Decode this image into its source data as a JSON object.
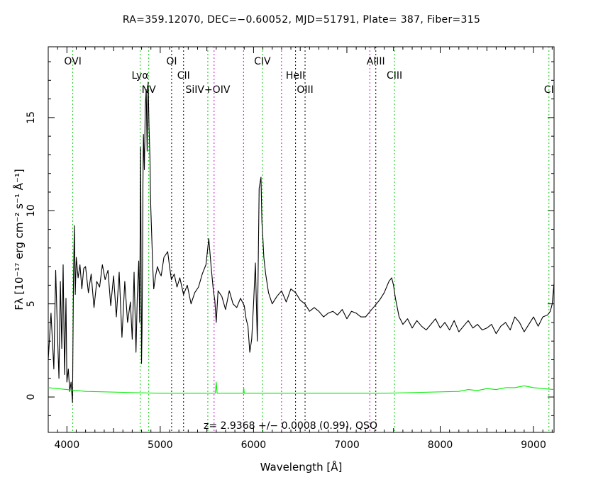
{
  "chart_data": {
    "type": "line",
    "title": "RA=359.12070, DEC=−0.60052, MJD=51791, Plate=  387, Fiber=315",
    "xlabel": "Wavelength [Å]",
    "ylabel": "Fλ [10⁻¹⁷ erg cm⁻² s⁻¹ Å⁻¹]",
    "xlim": [
      3800,
      9220
    ],
    "ylim": [
      -1.9,
      18.8
    ],
    "x_ticks": [
      4000,
      5000,
      6000,
      7000,
      8000,
      9000
    ],
    "y_ticks": [
      0,
      5,
      10,
      15
    ],
    "annotation": "z= 2.9368 +/− 0.0008 (0.99), QSO",
    "colors": {
      "spectrum": "#000000",
      "error": "#00ee00",
      "emission_line": "#00cc00",
      "absorption_line": "#000000",
      "sky_line": "#cc00cc"
    },
    "series": [
      {
        "x": [
          3800,
          3830,
          3860,
          3880,
          3900,
          3915,
          3930,
          3945,
          3960,
          3975,
          3990,
          4000,
          4015,
          4030,
          4045,
          4060,
          4070,
          4080,
          4090,
          4100,
          4120,
          4140,
          4160,
          4180,
          4200,
          4230,
          4260,
          4290,
          4320,
          4350,
          4380,
          4410,
          4440,
          4470,
          4500,
          4530,
          4560,
          4590,
          4620,
          4650,
          4680,
          4700,
          4720,
          4740,
          4755,
          4770,
          4780,
          4790,
          4800,
          4805,
          4810,
          4815,
          4820,
          4830,
          4840,
          4850,
          4860,
          4870,
          4880,
          4890,
          4895,
          4900,
          4910,
          4920,
          4930,
          4950,
          4970,
          4990,
          5010,
          5040,
          5080,
          5100,
          5120,
          5150,
          5180,
          5210,
          5250,
          5290,
          5330,
          5370,
          5410,
          5450,
          5490,
          5520,
          5545,
          5570,
          5585,
          5600,
          5620,
          5660,
          5700,
          5740,
          5780,
          5820,
          5860,
          5900,
          5920,
          5940,
          5960,
          5980,
          6000,
          6020,
          6040,
          6060,
          6080,
          6090,
          6100,
          6110,
          6130,
          6160,
          6200,
          6250,
          6300,
          6350,
          6400,
          6450,
          6500,
          6550,
          6600,
          6650,
          6700,
          6750,
          6800,
          6850,
          6900,
          6950,
          7000,
          7050,
          7100,
          7150,
          7200,
          7250,
          7300,
          7350,
          7400,
          7450,
          7480,
          7500,
          7520,
          7540,
          7560,
          7580,
          7600,
          7650,
          7700,
          7750,
          7800,
          7850,
          7900,
          7950,
          8000,
          8050,
          8100,
          8150,
          8200,
          8250,
          8300,
          8350,
          8400,
          8450,
          8500,
          8550,
          8600,
          8650,
          8700,
          8750,
          8800,
          8850,
          8900,
          8950,
          9000,
          9050,
          9100,
          9150,
          9180,
          9200,
          9220
        ],
        "y": [
          2.0,
          4.5,
          1.5,
          6.8,
          3.2,
          1.0,
          6.2,
          2.6,
          7.1,
          1.2,
          5.3,
          0.8,
          1.5,
          0.3,
          0.8,
          -0.3,
          6.0,
          9.2,
          5.5,
          7.5,
          6.4,
          7.1,
          5.8,
          6.9,
          7.0,
          5.6,
          6.6,
          4.8,
          6.2,
          5.9,
          7.1,
          6.3,
          6.8,
          4.9,
          6.5,
          4.3,
          6.7,
          3.2,
          6.2,
          4.0,
          5.1,
          3.1,
          6.7,
          2.4,
          5.5,
          7.3,
          4.0,
          13.4,
          1.8,
          3.6,
          7.0,
          11.5,
          14.1,
          12.2,
          15.6,
          16.5,
          13.2,
          16.9,
          14.5,
          12.8,
          11.0,
          10.0,
          8.5,
          7.0,
          5.8,
          6.5,
          7.0,
          6.7,
          6.5,
          7.5,
          7.8,
          7.0,
          6.3,
          6.6,
          5.9,
          6.4,
          5.5,
          6.0,
          5.0,
          5.6,
          5.9,
          6.6,
          7.1,
          8.5,
          7.0,
          5.7,
          5.2,
          4.0,
          5.7,
          5.4,
          4.7,
          5.7,
          5.0,
          4.8,
          5.3,
          4.9,
          4.2,
          3.8,
          2.4,
          3.1,
          5.0,
          7.2,
          3.0,
          11.2,
          11.8,
          9.4,
          8.5,
          7.5,
          6.6,
          5.6,
          5.0,
          5.4,
          5.7,
          5.1,
          5.8,
          5.6,
          5.2,
          5.0,
          4.6,
          4.8,
          4.6,
          4.3,
          4.5,
          4.6,
          4.4,
          4.7,
          4.2,
          4.6,
          4.5,
          4.3,
          4.3,
          4.6,
          4.9,
          5.2,
          5.6,
          6.2,
          6.4,
          6.0,
          5.3,
          4.8,
          4.3,
          4.1,
          3.9,
          4.2,
          3.7,
          4.1,
          3.8,
          3.6,
          3.9,
          4.2,
          3.7,
          4.0,
          3.6,
          4.1,
          3.5,
          3.8,
          4.1,
          3.7,
          3.9,
          3.6,
          3.7,
          3.9,
          3.4,
          3.8,
          4.0,
          3.6,
          4.3,
          4.0,
          3.5,
          3.9,
          4.3,
          3.8,
          4.3,
          4.4,
          4.6,
          5.0,
          6.1
        ]
      },
      {
        "x": [
          3800,
          4200,
          4600,
          5000,
          5400,
          5590,
          5600,
          5610,
          5800,
          5890,
          5895,
          5900,
          6200,
          6600,
          7000,
          7400,
          7800,
          8200,
          8300,
          8400,
          8500,
          8600,
          8700,
          8800,
          8900,
          9000,
          9100,
          9220
        ],
        "y": [
          0.5,
          0.3,
          0.25,
          0.2,
          0.2,
          0.2,
          0.8,
          0.2,
          0.2,
          0.2,
          0.5,
          0.2,
          0.2,
          0.2,
          0.2,
          0.2,
          0.25,
          0.3,
          0.4,
          0.35,
          0.45,
          0.4,
          0.5,
          0.5,
          0.6,
          0.5,
          0.45,
          0.4
        ]
      }
    ],
    "lines": [
      {
        "label": "OVI",
        "wavelength": 4063,
        "kind": "emission",
        "row": 0
      },
      {
        "label": "Lyα",
        "wavelength": 4785,
        "kind": "emission",
        "row": 1
      },
      {
        "label": "NV",
        "wavelength": 4877,
        "kind": "emission",
        "row": 2
      },
      {
        "label": "OI",
        "wavelength": 5122,
        "kind": "absorption",
        "row": 0
      },
      {
        "label": "CII",
        "wavelength": 5250,
        "kind": "absorption",
        "row": 1
      },
      {
        "label": "SiIV+OIV",
        "wavelength": 5510,
        "kind": "emission",
        "row": 2
      },
      {
        "label": "",
        "wavelength": 5577,
        "kind": "sky",
        "row": 2
      },
      {
        "label": "",
        "wavelength": 5893,
        "kind": "sky",
        "row": 2
      },
      {
        "label": "CIV",
        "wavelength": 6095,
        "kind": "emission",
        "row": 0
      },
      {
        "label": "",
        "wavelength": 6300,
        "kind": "sky",
        "row": 2
      },
      {
        "label": "HeII",
        "wavelength": 6450,
        "kind": "absorption",
        "row": 1
      },
      {
        "label": "OIII",
        "wavelength": 6552,
        "kind": "absorption",
        "row": 2
      },
      {
        "label": "",
        "wavelength": 7246,
        "kind": "sky",
        "row": 2
      },
      {
        "label": "AlIII",
        "wavelength": 7310,
        "kind": "absorption",
        "row": 0
      },
      {
        "label": "CIII",
        "wavelength": 7510,
        "kind": "emission",
        "row": 1
      },
      {
        "label": "CI",
        "wavelength": 9165,
        "kind": "emission",
        "row": 2
      }
    ]
  }
}
